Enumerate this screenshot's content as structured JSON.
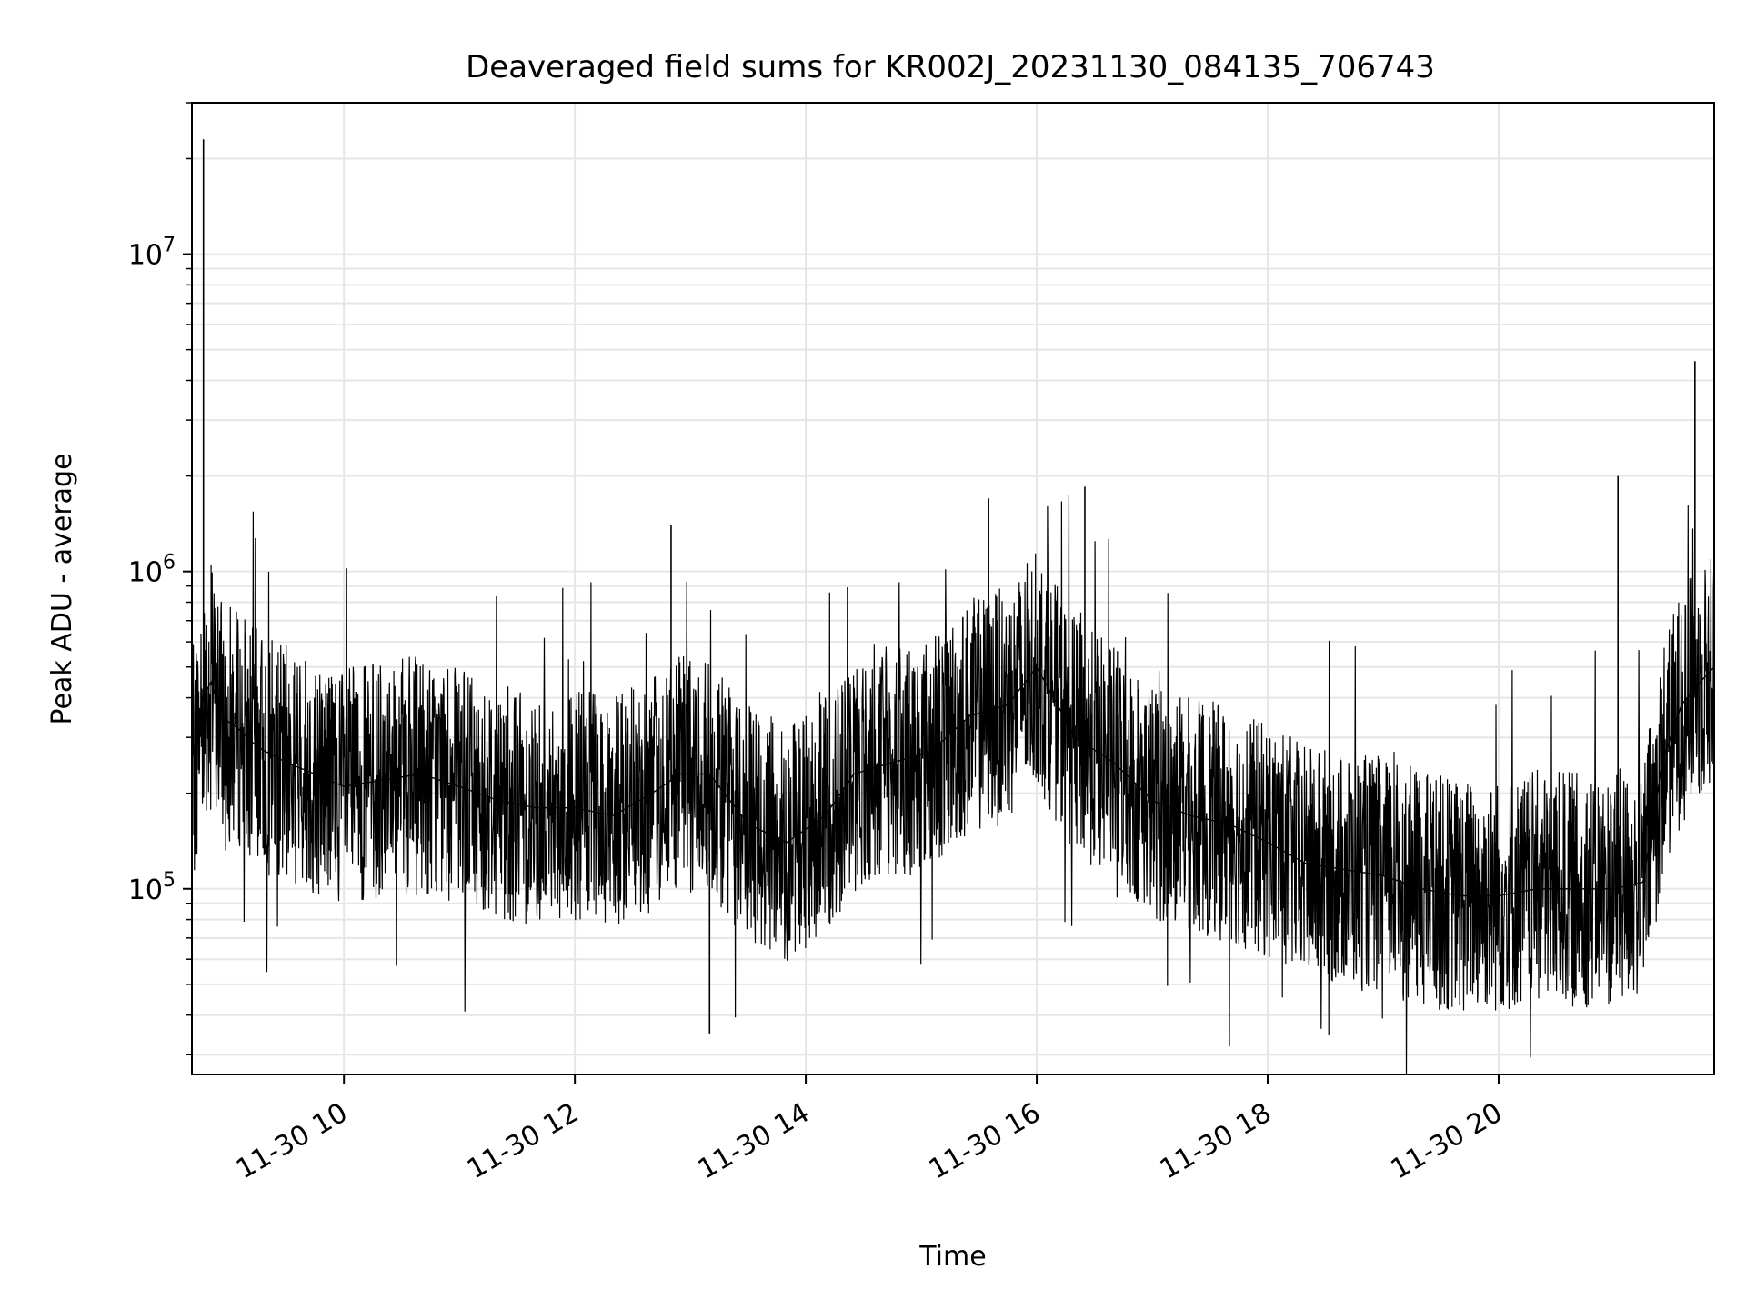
{
  "chart_data": {
    "type": "line",
    "title": "Deaveraged field sums for KR002J_20231130_084135_706743",
    "xlabel": "Time",
    "ylabel": "Peak ADU - average",
    "y_scale": "log",
    "x_range": [
      "2023-11-30 08:41",
      "2023-11-30 21:52"
    ],
    "ylim": [
      26000,
      30000000
    ],
    "grid": true,
    "line_color": "#000000",
    "grid_color": "#e6e6e6",
    "x_ticks": [
      {
        "time": "2023-11-30 10:00",
        "label": "11-30 10"
      },
      {
        "time": "2023-11-30 12:00",
        "label": "11-30 12"
      },
      {
        "time": "2023-11-30 14:00",
        "label": "11-30 14"
      },
      {
        "time": "2023-11-30 16:00",
        "label": "11-30 16"
      },
      {
        "time": "2023-11-30 18:00",
        "label": "11-30 18"
      },
      {
        "time": "2023-11-30 20:00",
        "label": "11-30 20"
      }
    ],
    "y_ticks": [
      {
        "value": 100000,
        "base": "10",
        "exp": "5"
      },
      {
        "value": 1000000,
        "base": "10",
        "exp": "6"
      },
      {
        "value": 10000000,
        "base": "10",
        "exp": "7"
      }
    ],
    "series": [
      {
        "x": [
          "2023-11-30 08:42",
          "2023-11-30 08:47",
          "2023-11-30 08:51",
          "2023-11-30 08:56",
          "2023-11-30 09:05",
          "2023-11-30 09:15",
          "2023-11-30 09:30",
          "2023-11-30 09:45",
          "2023-11-30 10:00",
          "2023-11-30 10:20",
          "2023-11-30 10:40",
          "2023-11-30 11:00",
          "2023-11-30 11:20",
          "2023-11-30 11:40",
          "2023-11-30 12:00",
          "2023-11-30 12:20",
          "2023-11-30 12:40",
          "2023-11-30 12:55",
          "2023-11-30 13:10",
          "2023-11-30 13:30",
          "2023-11-30 13:50",
          "2023-11-30 14:10",
          "2023-11-30 14:25",
          "2023-11-30 14:45",
          "2023-11-30 15:05",
          "2023-11-30 15:25",
          "2023-11-30 15:45",
          "2023-11-30 16:00",
          "2023-11-30 16:20",
          "2023-11-30 16:40",
          "2023-11-30 17:00",
          "2023-11-30 17:20",
          "2023-11-30 17:40",
          "2023-11-30 18:00",
          "2023-11-30 18:20",
          "2023-11-30 18:40",
          "2023-11-30 19:00",
          "2023-11-30 19:20",
          "2023-11-30 19:40",
          "2023-11-30 20:00",
          "2023-11-30 20:20",
          "2023-11-30 20:40",
          "2023-11-30 21:00",
          "2023-11-30 21:15",
          "2023-11-30 21:25",
          "2023-11-30 21:35",
          "2023-11-30 21:45",
          "2023-11-30 21:52"
        ],
        "y": [
          250000,
          400000,
          450000,
          350000,
          320000,
          280000,
          250000,
          230000,
          210000,
          220000,
          230000,
          210000,
          190000,
          180000,
          180000,
          170000,
          200000,
          230000,
          230000,
          160000,
          140000,
          170000,
          230000,
          250000,
          270000,
          350000,
          380000,
          500000,
          300000,
          250000,
          190000,
          170000,
          160000,
          140000,
          120000,
          115000,
          110000,
          100000,
          95000,
          95000,
          100000,
          100000,
          100000,
          105000,
          250000,
          380000,
          450000,
          500000
        ]
      }
    ],
    "spikes": [
      {
        "time": "2023-11-30 08:47",
        "value": 23000000
      },
      {
        "time": "2023-11-30 12:50",
        "value": 1400000
      },
      {
        "time": "2023-11-30 13:10",
        "value": 35000
      },
      {
        "time": "2023-11-30 15:35",
        "value": 1700000
      },
      {
        "time": "2023-11-30 16:25",
        "value": 1850000
      },
      {
        "time": "2023-11-30 21:02",
        "value": 2000000
      },
      {
        "time": "2023-11-30 21:42",
        "value": 4600000
      }
    ]
  }
}
